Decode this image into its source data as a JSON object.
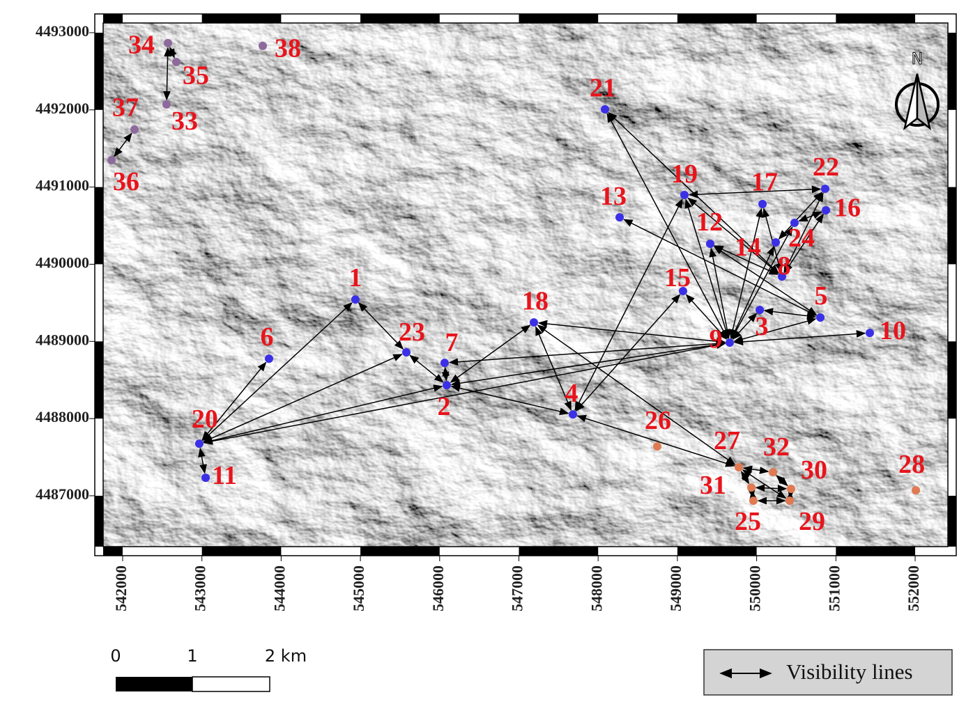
{
  "map": {
    "xticks": [
      542000,
      543000,
      544000,
      545000,
      546000,
      547000,
      548000,
      549000,
      550000,
      551000,
      552000
    ],
    "yticks": [
      4487000,
      4488000,
      4489000,
      4490000,
      4491000,
      4492000,
      4493000
    ],
    "xlim": [
      541754,
      552413
    ],
    "ylim": [
      4486341,
      4493126
    ],
    "points": [
      {
        "label": "1",
        "x": 544937,
        "y": 4489543,
        "color": "#3b30e6"
      },
      {
        "label": "2",
        "x": 546090,
        "y": 4488433,
        "color": "#3b30e6"
      },
      {
        "label": "3",
        "x": 550039,
        "y": 4489408,
        "color": "#3b30e6"
      },
      {
        "label": "4",
        "x": 547682,
        "y": 4488054,
        "color": "#3b30e6"
      },
      {
        "label": "5",
        "x": 550804,
        "y": 4489309,
        "color": "#3b30e6"
      },
      {
        "label": "6",
        "x": 543847,
        "y": 4488776,
        "color": "#3b30e6"
      },
      {
        "label": "7",
        "x": 546063,
        "y": 4488722,
        "color": "#3b30e6"
      },
      {
        "label": "8",
        "x": 550320,
        "y": 4489841,
        "color": "#3b30e6"
      },
      {
        "label": "9",
        "x": 549660,
        "y": 4488984,
        "color": "#3b30e6"
      },
      {
        "label": "10",
        "x": 551428,
        "y": 4489110,
        "color": "#3b30e6"
      },
      {
        "label": "11",
        "x": 543047,
        "y": 4487233,
        "color": "#3b30e6"
      },
      {
        "label": "12",
        "x": 549414,
        "y": 4490265,
        "color": "#3b30e6"
      },
      {
        "label": "13",
        "x": 548271,
        "y": 4490608,
        "color": "#3b30e6"
      },
      {
        "label": "14",
        "x": 550241,
        "y": 4490283,
        "color": "#3b30e6"
      },
      {
        "label": "15",
        "x": 549071,
        "y": 4489652,
        "color": "#3b30e6"
      },
      {
        "label": "16",
        "x": 550874,
        "y": 4490699,
        "color": "#3b30e6"
      },
      {
        "label": "17",
        "x": 550074,
        "y": 4490780,
        "color": "#3b30e6"
      },
      {
        "label": "18",
        "x": 547189,
        "y": 4489246,
        "color": "#3b30e6"
      },
      {
        "label": "19",
        "x": 549089,
        "y": 4490897,
        "color": "#3b30e6"
      },
      {
        "label": "20",
        "x": 542967,
        "y": 4487675,
        "color": "#3b30e6"
      },
      {
        "label": "21",
        "x": 548086,
        "y": 4492007,
        "color": "#3b30e6"
      },
      {
        "label": "22",
        "x": 550865,
        "y": 4490978,
        "color": "#3b30e6"
      },
      {
        "label": "23",
        "x": 545580,
        "y": 4488858,
        "color": "#3b30e6"
      },
      {
        "label": "24",
        "x": 550478,
        "y": 4490536,
        "color": "#3b30e6"
      },
      {
        "label": "25",
        "x": 549959,
        "y": 4486935,
        "color": "#e07a52"
      },
      {
        "label": "26",
        "x": 548746,
        "y": 4487639,
        "color": "#e07a52"
      },
      {
        "label": "27",
        "x": 549775,
        "y": 4487368,
        "color": "#e07a52"
      },
      {
        "label": "28",
        "x": 552009,
        "y": 4487071,
        "color": "#e07a52"
      },
      {
        "label": "29",
        "x": 550417,
        "y": 4486935,
        "color": "#e07a52"
      },
      {
        "label": "30",
        "x": 550434,
        "y": 4487089,
        "color": "#e07a52"
      },
      {
        "label": "31",
        "x": 549933,
        "y": 4487107,
        "color": "#e07a52"
      },
      {
        "label": "32",
        "x": 550206,
        "y": 4487305,
        "color": "#e07a52"
      },
      {
        "label": "33",
        "x": 542554,
        "y": 4492070,
        "color": "#8e6a9c"
      },
      {
        "label": "34",
        "x": 542572,
        "y": 4492865,
        "color": "#8e6a9c"
      },
      {
        "label": "35",
        "x": 542677,
        "y": 4492621,
        "color": "#8e6a9c"
      },
      {
        "label": "36",
        "x": 541859,
        "y": 4491348,
        "color": "#8e6a9c"
      },
      {
        "label": "37",
        "x": 542150,
        "y": 4491746,
        "color": "#8e6a9c"
      },
      {
        "label": "38",
        "x": 543768,
        "y": 4492829,
        "color": "#8e6a9c"
      }
    ],
    "links": [
      [
        "20",
        "11"
      ],
      [
        "20",
        "6"
      ],
      [
        "20",
        "1"
      ],
      [
        "20",
        "23"
      ],
      [
        "20",
        "2"
      ],
      [
        "20",
        "9"
      ],
      [
        "1",
        "23"
      ],
      [
        "23",
        "2"
      ],
      [
        "2",
        "7"
      ],
      [
        "2",
        "18"
      ],
      [
        "2",
        "4"
      ],
      [
        "2",
        "9"
      ],
      [
        "7",
        "9"
      ],
      [
        "18",
        "9"
      ],
      [
        "18",
        "4"
      ],
      [
        "18",
        "27"
      ],
      [
        "4",
        "19"
      ],
      [
        "4",
        "15"
      ],
      [
        "4",
        "27"
      ],
      [
        "21",
        "9"
      ],
      [
        "21",
        "8"
      ],
      [
        "19",
        "9"
      ],
      [
        "19",
        "22"
      ],
      [
        "19",
        "8"
      ],
      [
        "13",
        "5"
      ],
      [
        "12",
        "9"
      ],
      [
        "12",
        "8"
      ],
      [
        "12",
        "5"
      ],
      [
        "15",
        "9"
      ],
      [
        "17",
        "9"
      ],
      [
        "17",
        "8"
      ],
      [
        "14",
        "22"
      ],
      [
        "14",
        "9"
      ],
      [
        "24",
        "9"
      ],
      [
        "24",
        "16"
      ],
      [
        "8",
        "22"
      ],
      [
        "8",
        "16"
      ],
      [
        "3",
        "9"
      ],
      [
        "3",
        "5"
      ],
      [
        "5",
        "9"
      ],
      [
        "10",
        "9"
      ],
      [
        "33",
        "34"
      ],
      [
        "34",
        "35"
      ],
      [
        "36",
        "37"
      ],
      [
        "27",
        "29"
      ],
      [
        "27",
        "31"
      ],
      [
        "27",
        "32"
      ],
      [
        "31",
        "25"
      ],
      [
        "25",
        "29"
      ],
      [
        "29",
        "30"
      ],
      [
        "30",
        "32"
      ],
      [
        "31",
        "30"
      ]
    ],
    "north": "N",
    "scale_bar": [
      "0",
      "1",
      "2 km"
    ],
    "legend": "Visibility lines"
  }
}
